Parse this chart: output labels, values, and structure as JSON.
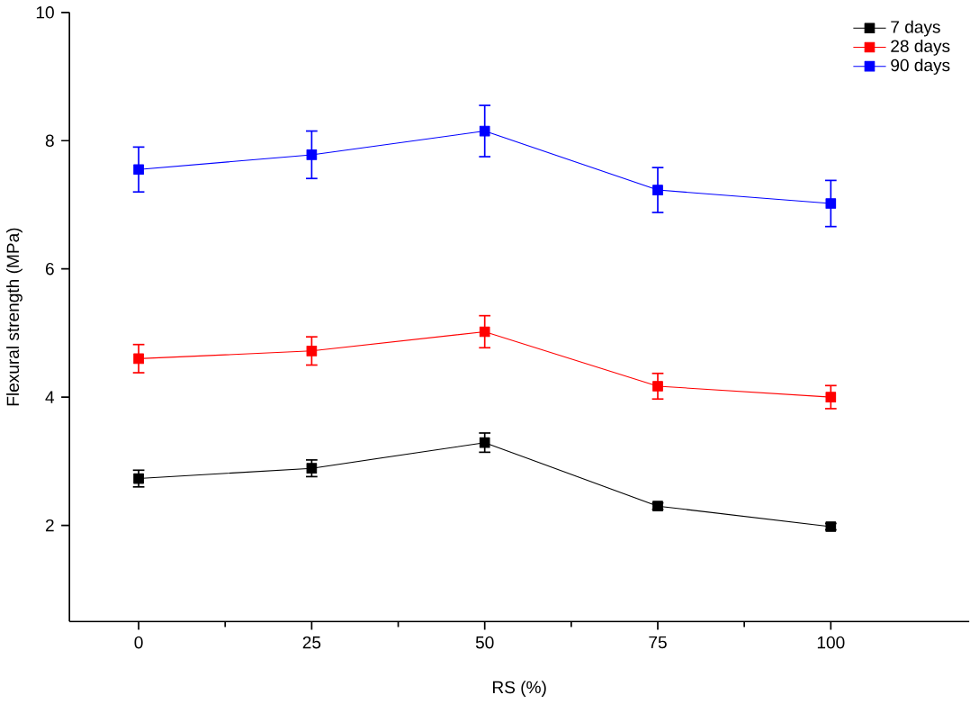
{
  "chart_data": {
    "type": "line",
    "xlabel": "RS (%)",
    "ylabel": "Flexural strength (MPa)",
    "x": [
      0,
      25,
      50,
      75,
      100
    ],
    "series": [
      {
        "name": "7 days",
        "color": "#000000",
        "values": [
          2.73,
          2.89,
          3.29,
          2.3,
          1.98
        ],
        "errors": [
          0.13,
          0.13,
          0.15,
          0.05,
          0.05
        ]
      },
      {
        "name": "28 days",
        "color": "#ff0000",
        "values": [
          4.6,
          4.72,
          5.02,
          4.17,
          4.0
        ],
        "errors": [
          0.22,
          0.22,
          0.25,
          0.2,
          0.18
        ]
      },
      {
        "name": "90 days",
        "color": "#0000ff",
        "values": [
          7.55,
          7.78,
          8.15,
          7.23,
          7.02
        ],
        "errors": [
          0.35,
          0.37,
          0.4,
          0.35,
          0.36
        ]
      }
    ],
    "xlim": [
      -10,
      120
    ],
    "ylim": [
      0.5,
      10
    ],
    "xticks": [
      0,
      25,
      50,
      75,
      100
    ],
    "yticks": [
      2,
      4,
      6,
      8,
      10
    ],
    "marker": "square",
    "line_style": "solid",
    "legend": "top right",
    "grid": false
  }
}
